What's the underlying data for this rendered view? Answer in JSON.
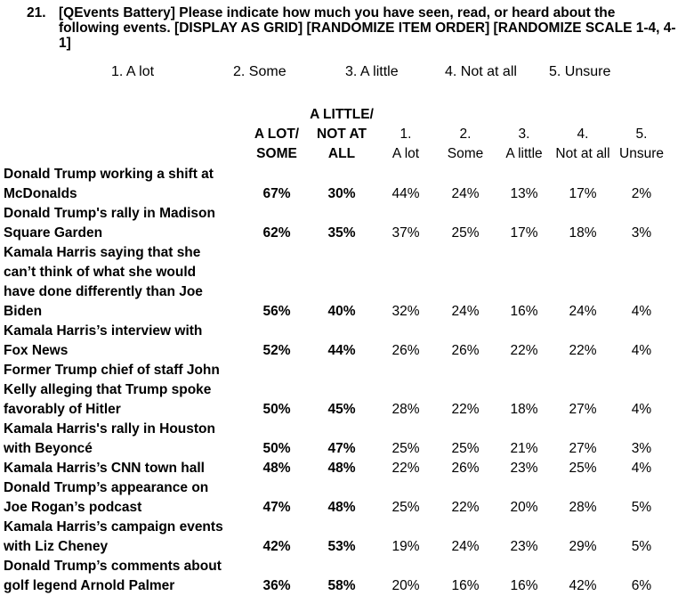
{
  "question": {
    "number": "21.",
    "text": "[QEvents Battery] Please indicate how much you have seen, read, or heard about the following events. [DISPLAY AS GRID] [RANDOMIZE ITEM ORDER] [RANDOMIZE SCALE 1-4, 4-1]"
  },
  "scale": [
    "1. A lot",
    "2. Some",
    "3. A little",
    "4. Not at all",
    "5. Unsure"
  ],
  "headers": {
    "net1": [
      "A LOT/",
      "SOME"
    ],
    "net2": [
      "A LITTLE/",
      "NOT AT",
      "ALL"
    ],
    "c1": [
      "1.",
      "A lot"
    ],
    "c2": [
      "2.",
      "Some"
    ],
    "c3": [
      "3.",
      "A little"
    ],
    "c4": [
      "4.",
      "Not at all"
    ],
    "c5": [
      "5.",
      "Unsure"
    ]
  },
  "rows": [
    {
      "label": [
        "Donald Trump working a shift at",
        "McDonalds"
      ],
      "values": [
        "67%",
        "30%",
        "44%",
        "24%",
        "13%",
        "17%",
        "2%"
      ]
    },
    {
      "label": [
        "Donald Trump's rally in Madison",
        "Square Garden"
      ],
      "values": [
        "62%",
        "35%",
        "37%",
        "25%",
        "17%",
        "18%",
        "3%"
      ]
    },
    {
      "label": [
        "Kamala Harris saying that she",
        "can’t think of what she would",
        "have done differently than Joe",
        "Biden"
      ],
      "values": [
        "56%",
        "40%",
        "32%",
        "24%",
        "16%",
        "24%",
        "4%"
      ]
    },
    {
      "label": [
        "Kamala Harris’s interview with",
        "Fox News"
      ],
      "values": [
        "52%",
        "44%",
        "26%",
        "26%",
        "22%",
        "22%",
        "4%"
      ]
    },
    {
      "label": [
        "Former Trump chief of staff John",
        "Kelly alleging that Trump spoke",
        "favorably of Hitler"
      ],
      "values": [
        "50%",
        "45%",
        "28%",
        "22%",
        "18%",
        "27%",
        "4%"
      ]
    },
    {
      "label": [
        "Kamala Harris's rally in Houston",
        "with Beyoncé"
      ],
      "values": [
        "50%",
        "47%",
        "25%",
        "25%",
        "21%",
        "27%",
        "3%"
      ]
    },
    {
      "label": [
        "Kamala Harris’s CNN town hall"
      ],
      "values": [
        "48%",
        "48%",
        "22%",
        "26%",
        "23%",
        "25%",
        "4%"
      ]
    },
    {
      "label": [
        "Donald Trump’s appearance on",
        "Joe Rogan’s podcast"
      ],
      "values": [
        "47%",
        "48%",
        "25%",
        "22%",
        "20%",
        "28%",
        "5%"
      ]
    },
    {
      "label": [
        "Kamala Harris’s campaign events",
        "with Liz Cheney"
      ],
      "values": [
        "42%",
        "53%",
        "19%",
        "24%",
        "23%",
        "29%",
        "5%"
      ]
    },
    {
      "label": [
        "Donald Trump’s comments about",
        "golf legend Arnold Palmer"
      ],
      "values": [
        "36%",
        "58%",
        "20%",
        "16%",
        "16%",
        "42%",
        "6%"
      ]
    }
  ]
}
